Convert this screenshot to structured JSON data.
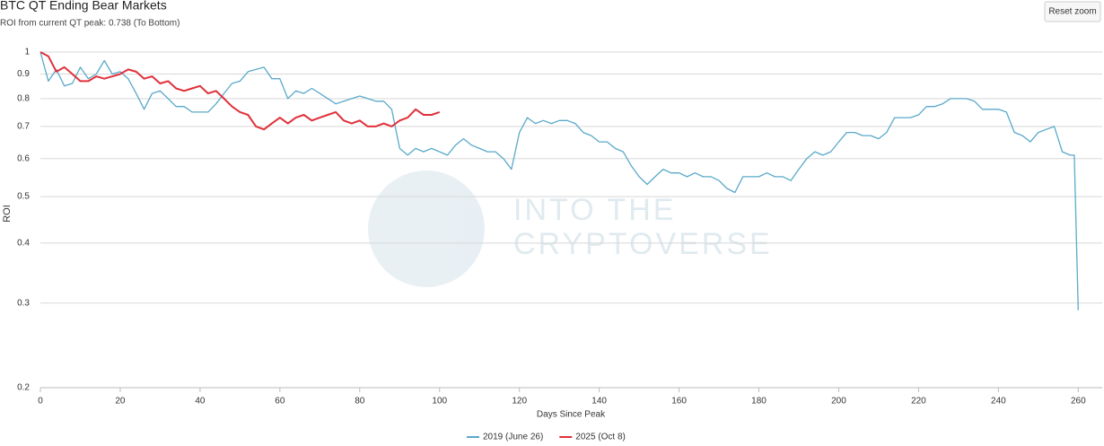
{
  "chart_data": {
    "type": "line",
    "title": "BTC QT Ending Bear Markets",
    "subtitle": "ROI from current QT peak: 0.738 (To Bottom)",
    "reset_button": "Reset zoom",
    "watermark": [
      "INTO THE",
      "CRYPTOVERSE"
    ],
    "x_label": "Days Since Peak",
    "y_label": "ROI",
    "log_y": true,
    "grid": true,
    "legend": "bottom",
    "xlim": [
      0,
      266
    ],
    "xticks": [
      0,
      20,
      40,
      60,
      80,
      100,
      120,
      140,
      160,
      180,
      200,
      220,
      240,
      260
    ],
    "ylim": [
      0.2,
      1
    ],
    "yticks": [
      1,
      0.9,
      0.8,
      0.7,
      0.6,
      0.5,
      0.4,
      0.3,
      0.2
    ],
    "series": [
      {
        "name": "2019 (June 26)",
        "color": "#5aa9c9",
        "x": [
          0,
          2,
          4,
          6,
          8,
          10,
          12,
          14,
          16,
          18,
          20,
          22,
          24,
          26,
          28,
          30,
          32,
          34,
          36,
          38,
          40,
          42,
          44,
          46,
          48,
          50,
          52,
          54,
          56,
          58,
          60,
          62,
          64,
          66,
          68,
          70,
          72,
          74,
          76,
          78,
          80,
          82,
          84,
          86,
          88,
          90,
          92,
          94,
          96,
          98,
          100,
          102,
          104,
          106,
          108,
          110,
          112,
          114,
          116,
          118,
          120,
          122,
          124,
          126,
          128,
          130,
          132,
          134,
          136,
          138,
          140,
          142,
          144,
          146,
          148,
          150,
          152,
          154,
          156,
          158,
          160,
          162,
          164,
          166,
          168,
          170,
          172,
          174,
          176,
          178,
          180,
          182,
          184,
          186,
          188,
          190,
          192,
          194,
          196,
          198,
          200,
          202,
          204,
          206,
          208,
          210,
          212,
          214,
          216,
          218,
          220,
          222,
          224,
          226,
          228,
          230,
          232,
          234,
          236,
          238,
          240,
          242,
          244,
          246,
          248,
          250,
          252,
          254,
          256,
          258,
          259,
          260
        ],
        "values": [
          1.0,
          0.87,
          0.92,
          0.85,
          0.86,
          0.93,
          0.88,
          0.9,
          0.96,
          0.9,
          0.91,
          0.88,
          0.82,
          0.76,
          0.82,
          0.83,
          0.8,
          0.77,
          0.77,
          0.75,
          0.75,
          0.75,
          0.78,
          0.82,
          0.86,
          0.87,
          0.91,
          0.92,
          0.93,
          0.88,
          0.88,
          0.8,
          0.83,
          0.82,
          0.84,
          0.82,
          0.8,
          0.78,
          0.79,
          0.8,
          0.81,
          0.8,
          0.79,
          0.79,
          0.76,
          0.63,
          0.61,
          0.63,
          0.62,
          0.63,
          0.62,
          0.61,
          0.64,
          0.66,
          0.64,
          0.63,
          0.62,
          0.62,
          0.6,
          0.57,
          0.68,
          0.73,
          0.71,
          0.72,
          0.71,
          0.72,
          0.72,
          0.71,
          0.68,
          0.67,
          0.65,
          0.65,
          0.63,
          0.62,
          0.58,
          0.55,
          0.53,
          0.55,
          0.57,
          0.56,
          0.56,
          0.55,
          0.56,
          0.55,
          0.55,
          0.54,
          0.52,
          0.51,
          0.55,
          0.55,
          0.55,
          0.56,
          0.55,
          0.55,
          0.54,
          0.57,
          0.6,
          0.62,
          0.61,
          0.62,
          0.65,
          0.68,
          0.68,
          0.67,
          0.67,
          0.66,
          0.68,
          0.73,
          0.73,
          0.73,
          0.74,
          0.77,
          0.77,
          0.78,
          0.8,
          0.8,
          0.8,
          0.79,
          0.76,
          0.76,
          0.76,
          0.75,
          0.68,
          0.67,
          0.65,
          0.68,
          0.69,
          0.7,
          0.62,
          0.61,
          0.61,
          0.29
        ]
      },
      {
        "name": "2025 (Oct 8)",
        "color": "#e0303a",
        "x": [
          0,
          2,
          4,
          6,
          8,
          10,
          12,
          14,
          16,
          18,
          20,
          22,
          24,
          26,
          28,
          30,
          32,
          34,
          36,
          38,
          40,
          42,
          44,
          46,
          48,
          50,
          52,
          54,
          56,
          58,
          60,
          62,
          64,
          66,
          68,
          70,
          72,
          74,
          76,
          78,
          80,
          82,
          84,
          86,
          88,
          90,
          92,
          94,
          96,
          98,
          100
        ],
        "values": [
          1.0,
          0.98,
          0.91,
          0.93,
          0.9,
          0.87,
          0.87,
          0.89,
          0.88,
          0.89,
          0.9,
          0.92,
          0.91,
          0.88,
          0.89,
          0.86,
          0.87,
          0.84,
          0.83,
          0.84,
          0.85,
          0.82,
          0.83,
          0.8,
          0.77,
          0.75,
          0.74,
          0.7,
          0.69,
          0.71,
          0.73,
          0.71,
          0.73,
          0.74,
          0.72,
          0.73,
          0.74,
          0.75,
          0.72,
          0.71,
          0.72,
          0.7,
          0.7,
          0.71,
          0.7,
          0.72,
          0.73,
          0.76,
          0.74,
          0.74,
          0.75
        ]
      }
    ]
  }
}
